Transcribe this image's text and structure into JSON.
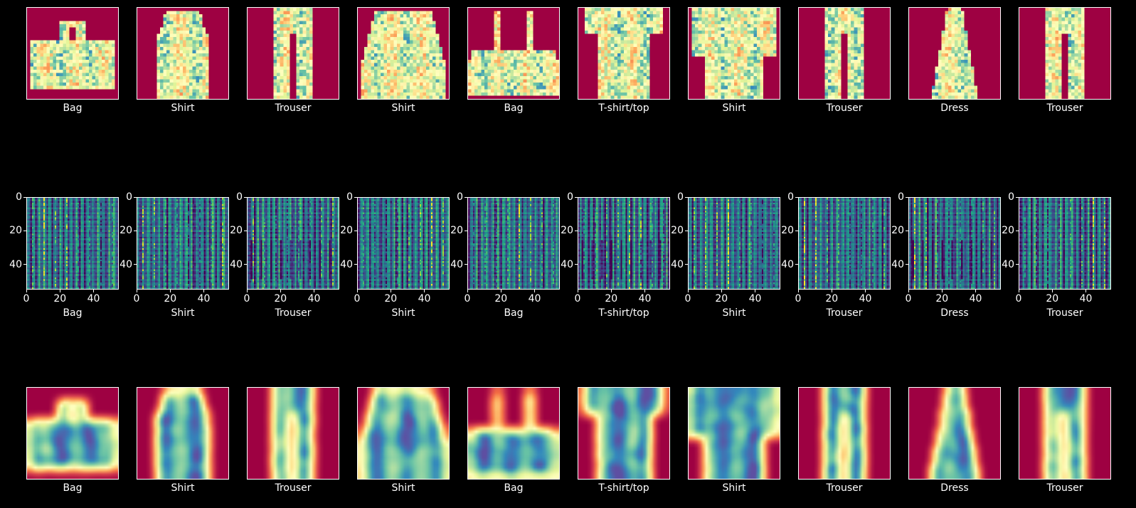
{
  "chart_data": {
    "type": "heatmap",
    "rows": [
      {
        "name": "input-images",
        "colormap": "Spectral",
        "show_axes": false,
        "panels": [
          {
            "label": "Bag",
            "shape": "bag"
          },
          {
            "label": "Shirt",
            "shape": "tank"
          },
          {
            "label": "Trouser",
            "shape": "trouser"
          },
          {
            "label": "Shirt",
            "shape": "longsleeve"
          },
          {
            "label": "Bag",
            "shape": "handbag"
          },
          {
            "label": "T-shirt/top",
            "shape": "tee"
          },
          {
            "label": "Shirt",
            "shape": "shirt"
          },
          {
            "label": "Trouser",
            "shape": "trouser"
          },
          {
            "label": "Dress",
            "shape": "dress"
          },
          {
            "label": "Trouser",
            "shape": "trouser"
          }
        ]
      },
      {
        "name": "feature-maps",
        "colormap": "viridis",
        "show_axes": true,
        "xticks": [
          "0",
          "20",
          "40"
        ],
        "yticks": [
          "0",
          "20",
          "40"
        ],
        "xlim": [
          0,
          55
        ],
        "ylim": [
          55,
          0
        ],
        "panels": [
          {
            "label": "Bag"
          },
          {
            "label": "Shirt"
          },
          {
            "label": "Trouser"
          },
          {
            "label": "Shirt"
          },
          {
            "label": "Bag"
          },
          {
            "label": "T-shirt/top"
          },
          {
            "label": "Shirt"
          },
          {
            "label": "Trouser"
          },
          {
            "label": "Dress"
          },
          {
            "label": "Trouser"
          }
        ]
      },
      {
        "name": "reconstructions",
        "colormap": "Spectral",
        "show_axes": false,
        "panels": [
          {
            "label": "Bag",
            "shape": "bag"
          },
          {
            "label": "Shirt",
            "shape": "tank"
          },
          {
            "label": "Trouser",
            "shape": "trouser"
          },
          {
            "label": "Shirt",
            "shape": "longsleeve"
          },
          {
            "label": "Bag",
            "shape": "handbag"
          },
          {
            "label": "T-shirt/top",
            "shape": "tee"
          },
          {
            "label": "Shirt",
            "shape": "shirt"
          },
          {
            "label": "Trouser",
            "shape": "trouser"
          },
          {
            "label": "Dress",
            "shape": "dress"
          },
          {
            "label": "Trouser",
            "shape": "trouser"
          }
        ]
      }
    ]
  }
}
